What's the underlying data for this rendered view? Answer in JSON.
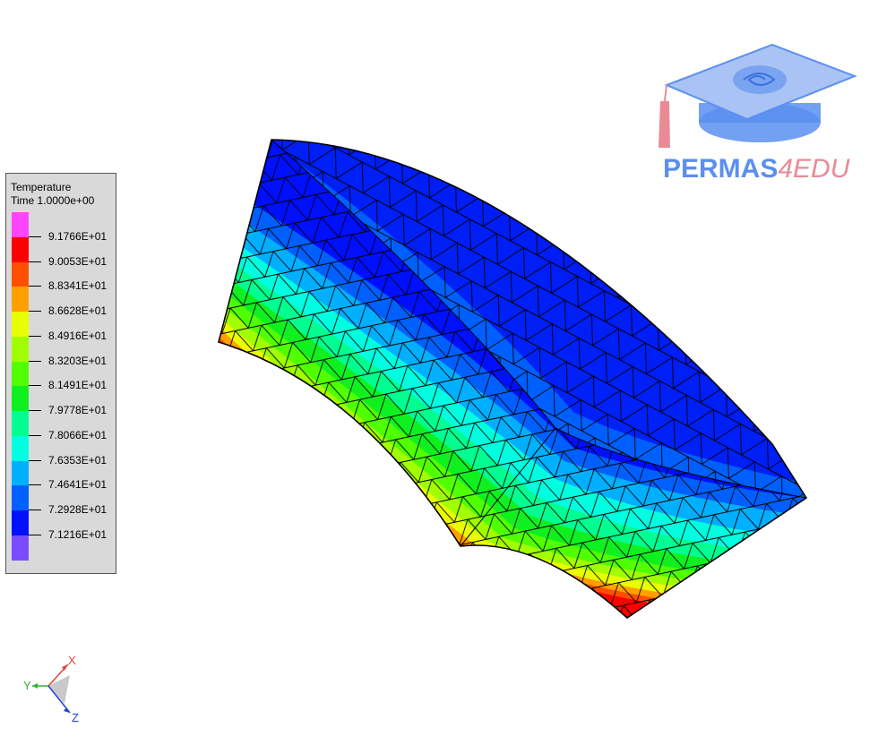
{
  "legend": {
    "title": "Temperature",
    "time": "Time 1.0000e+00",
    "levels": [
      {
        "color": "#ff44ff"
      },
      {
        "color": "#ff0000",
        "label": "9.1766E+01"
      },
      {
        "color": "#ff5000",
        "label": "9.0053E+01"
      },
      {
        "color": "#ffa000",
        "label": "8.8341E+01"
      },
      {
        "color": "#e8ff00",
        "label": "8.6628E+01"
      },
      {
        "color": "#a0ff00",
        "label": "8.4916E+01"
      },
      {
        "color": "#50ff00",
        "label": "8.3203E+01"
      },
      {
        "color": "#10f020",
        "label": "8.1491E+01"
      },
      {
        "color": "#00ff90",
        "label": "7.9778E+01"
      },
      {
        "color": "#00ffe0",
        "label": "7.8066E+01"
      },
      {
        "color": "#00b0ff",
        "label": "7.6353E+01"
      },
      {
        "color": "#0060ff",
        "label": "7.4641E+01"
      },
      {
        "color": "#0010ff",
        "label": "7.2928E+01"
      },
      {
        "color": "#7a4cff",
        "label": "7.1216E+01"
      }
    ]
  },
  "logo": {
    "text_main": "PERMAS",
    "text_accent": "4EDU"
  },
  "triad": {
    "x": "X",
    "y": "Y",
    "z": "Z"
  },
  "colors": {
    "mesh_line": "#000000",
    "logo_blue": "#5b8ff0",
    "logo_pink": "#ea8a97"
  }
}
